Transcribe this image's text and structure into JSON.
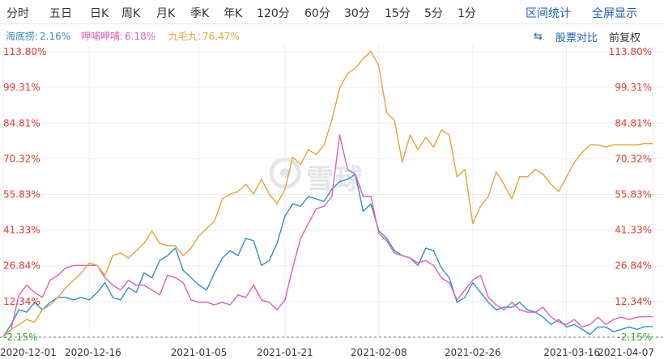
{
  "toolbar": {
    "periods": [
      "分时",
      "五日",
      "日K",
      "周K",
      "月K",
      "季K",
      "年K",
      "120分",
      "60分",
      "30分",
      "15分",
      "5分",
      "1分"
    ],
    "range_stats": "区间统计",
    "fullscreen": "全屏显示"
  },
  "legend": [
    {
      "name": "海底捞:",
      "value": "2.16%",
      "color": "#2f8fc9"
    },
    {
      "name": "呷哺呷哺:",
      "value": "6.18%",
      "color": "#e05fb6"
    },
    {
      "name": "九毛九:",
      "value": "76.47%",
      "color": "#e8a23a"
    }
  ],
  "controls": {
    "compare_icon": "swap-icon",
    "compare_label": "股票对比",
    "adjust_label": "前复权"
  },
  "watermark": {
    "text": "雪球",
    "icon": "snowball-logo-icon"
  },
  "chart_data": {
    "type": "line",
    "y_tick_labels": [
      "113.80%",
      "99.31%",
      "84.81%",
      "70.32%",
      "55.83%",
      "41.33%",
      "26.84%",
      "12.34%",
      "-2.15%"
    ],
    "y_tick_values": [
      113.8,
      99.31,
      84.81,
      70.32,
      55.83,
      41.33,
      26.84,
      12.34,
      -2.15
    ],
    "ylim": [
      -2.15,
      113.8
    ],
    "x_tick_labels": [
      "2020-12-01",
      "2020-12-16",
      "2021-01-05",
      "2021-01-21",
      "2021-02-08",
      "2021-02-26",
      "2021-03-16",
      "2021-04-07"
    ],
    "x_tick_index": [
      0,
      11,
      25,
      36,
      48,
      60,
      72,
      83
    ],
    "xlim": [
      0,
      83
    ],
    "baseline": -2.15,
    "positive_color": "#e03c31",
    "negative_color": "#3aa83a",
    "series": [
      {
        "name": "海底捞",
        "color": "#2f8fc9",
        "values": [
          -2,
          3,
          9,
          8,
          12,
          9,
          12,
          14,
          14,
          13,
          14,
          13,
          16,
          20,
          14,
          13,
          18,
          16,
          24,
          22,
          29,
          31,
          34,
          25,
          22,
          19,
          17,
          24,
          30,
          33,
          31,
          38,
          37,
          27,
          29,
          36,
          47,
          52,
          51,
          55,
          54,
          53,
          58,
          61,
          62,
          64,
          49,
          52,
          41,
          38,
          33,
          31,
          30,
          27,
          34,
          33,
          26,
          22,
          12,
          14,
          20,
          16,
          12,
          9,
          10,
          10,
          12,
          9,
          8,
          6,
          3,
          5,
          2,
          3,
          1,
          -1,
          2,
          2,
          0,
          1,
          2,
          1,
          2.16,
          2.16
        ]
      },
      {
        "name": "呷哺呷哺",
        "color": "#e05fb6",
        "values": [
          -2,
          1,
          15,
          19,
          16,
          14,
          21,
          23,
          26,
          27,
          27,
          27,
          27,
          22,
          19,
          17,
          21,
          19,
          19,
          17,
          15,
          23,
          22,
          20,
          13,
          12,
          12,
          11,
          12,
          11,
          15,
          14,
          19,
          13,
          12,
          9,
          13,
          26,
          38,
          44,
          50,
          51,
          55,
          80,
          66,
          64,
          55,
          55,
          40,
          37,
          32,
          31,
          30,
          28,
          29,
          27,
          22,
          20,
          13,
          17,
          21,
          23,
          14,
          11,
          9,
          12,
          9,
          8,
          8,
          10,
          6,
          4,
          3,
          5,
          2,
          3,
          6,
          3,
          5,
          6,
          5,
          6,
          6.18,
          6.18
        ]
      },
      {
        "name": "九毛九",
        "color": "#e8a23a",
        "values": [
          -2,
          1,
          3,
          5,
          4,
          9,
          11,
          14,
          18,
          21,
          24,
          28,
          27,
          23,
          31,
          32,
          30,
          33,
          36,
          41,
          36,
          35,
          35,
          31,
          34,
          39,
          42,
          45,
          54,
          56,
          57,
          60,
          56,
          62,
          56,
          52,
          58,
          71,
          68,
          74,
          72,
          76,
          86,
          99,
          105,
          107,
          111,
          114,
          108,
          89,
          86,
          69,
          80,
          74,
          79,
          75,
          82,
          80,
          63,
          66,
          44,
          51,
          55,
          65,
          60,
          54,
          63,
          63,
          66,
          64,
          60,
          57,
          63,
          69,
          73,
          76,
          76,
          75,
          76,
          76,
          76,
          76,
          76.47,
          76.47
        ]
      }
    ]
  }
}
